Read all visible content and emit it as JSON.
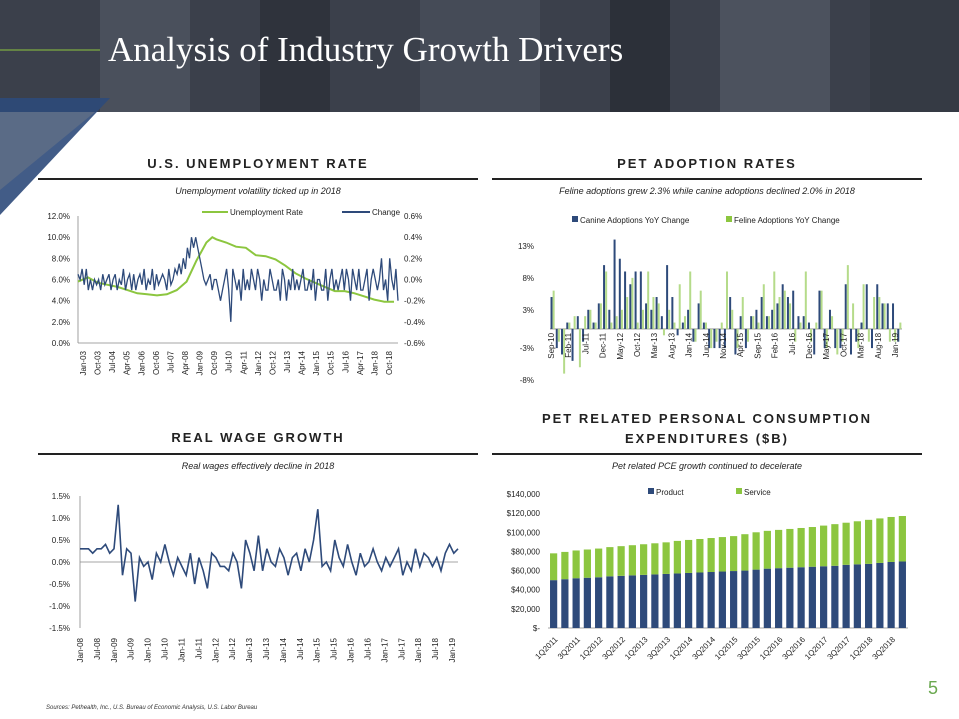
{
  "page": {
    "title": "Analysis of Industry Growth Drivers",
    "page_number": "5",
    "sources": "Sources: Pethealth, Inc., U.S. Bureau of Economic Analysis, U.S. Labor Bureau"
  },
  "colors": {
    "navy": "#2e4a7a",
    "green": "#8cc63f",
    "green_light": "#b5db8a"
  },
  "panels": {
    "unemployment": {
      "title": "U.S. UNEMPLOYMENT RATE",
      "subtitle": "Unemployment volatility ticked up in 2018"
    },
    "adoption": {
      "title": "PET ADOPTION RATES",
      "subtitle": "Feline adoptions grew 2.3% while canine adoptions declined 2.0% in 2018"
    },
    "wage": {
      "title": "REAL WAGE GROWTH",
      "subtitle": "Real wages effectively decline in 2018"
    },
    "pce": {
      "title_line1": "PET RELATED PERSONAL CONSUMPTION",
      "title_line2": "EXPENDITURES ($B)",
      "subtitle": "Pet related PCE growth continued to decelerate"
    }
  },
  "chart_data": [
    {
      "id": "unemployment",
      "type": "line",
      "legend": [
        "Unemployment Rate",
        "Change"
      ],
      "x_ticks": [
        "Jan-03",
        "Oct-03",
        "Jul-04",
        "Apr-05",
        "Jan-06",
        "Oct-06",
        "Jul-07",
        "Apr-08",
        "Jan-09",
        "Oct-09",
        "Jul-10",
        "Apr-11",
        "Jan-12",
        "Oct-12",
        "Jul-13",
        "Apr-14",
        "Jan-15",
        "Oct-15",
        "Jul-16",
        "Apr-17",
        "Jan-18",
        "Oct-18"
      ],
      "y_left_ticks": [
        "12.0%",
        "10.0%",
        "8.0%",
        "6.0%",
        "4.0%",
        "2.0%",
        "0.0%"
      ],
      "ylim_left": [
        0,
        12
      ],
      "y_right_ticks": [
        "0.6%",
        "0.4%",
        "0.2%",
        "0.0%",
        "-0.2%",
        "-0.4%",
        "-0.6%"
      ],
      "ylim_right": [
        -0.6,
        0.6
      ],
      "rate_series": [
        [
          2003.0,
          5.8
        ],
        [
          2003.5,
          6.2
        ],
        [
          2004.0,
          5.7
        ],
        [
          2004.5,
          5.5
        ],
        [
          2005.0,
          5.3
        ],
        [
          2005.5,
          5.0
        ],
        [
          2006.0,
          4.7
        ],
        [
          2006.5,
          4.6
        ],
        [
          2007.0,
          4.5
        ],
        [
          2007.5,
          4.6
        ],
        [
          2008.0,
          5.0
        ],
        [
          2008.5,
          5.8
        ],
        [
          2009.0,
          7.8
        ],
        [
          2009.5,
          9.5
        ],
        [
          2009.8,
          10.0
        ],
        [
          2010.0,
          9.8
        ],
        [
          2010.5,
          9.5
        ],
        [
          2011.0,
          9.1
        ],
        [
          2011.5,
          9.0
        ],
        [
          2012.0,
          8.3
        ],
        [
          2012.5,
          8.2
        ],
        [
          2013.0,
          7.9
        ],
        [
          2013.5,
          7.3
        ],
        [
          2014.0,
          6.6
        ],
        [
          2014.5,
          6.1
        ],
        [
          2015.0,
          5.7
        ],
        [
          2015.5,
          5.3
        ],
        [
          2016.0,
          4.9
        ],
        [
          2016.5,
          4.9
        ],
        [
          2017.0,
          4.7
        ],
        [
          2017.5,
          4.4
        ],
        [
          2018.0,
          4.1
        ],
        [
          2018.5,
          3.9
        ],
        [
          2019.0,
          3.9
        ]
      ],
      "change_series": [
        0.05,
        0.0,
        0.1,
        -0.05,
        0.1,
        -0.1,
        0.0,
        -0.1,
        0.0,
        -0.05,
        0.0,
        -0.1,
        0.05,
        -0.05,
        0.0,
        0.05,
        -0.1,
        0.0,
        0.05,
        -0.1,
        0.0,
        -0.05,
        0.1,
        -0.1,
        0.0,
        0.05,
        -0.1,
        0.05,
        -0.1,
        0.0,
        0.05,
        -0.05,
        0.1,
        -0.1,
        0.0,
        -0.05,
        0.1,
        -0.1,
        0.05,
        -0.05,
        0.0,
        0.05,
        0.0,
        -0.1,
        0.1,
        -0.05,
        0.0,
        0.1,
        0.05,
        0.15,
        0.05,
        0.2,
        0.1,
        0.3,
        0.2,
        0.4,
        0.3,
        0.4,
        0.3,
        0.2,
        0.1,
        0.0,
        -0.05,
        0.0,
        0.05,
        -0.1,
        0.0,
        0.0,
        -0.1,
        -0.2,
        -0.1,
        0.0,
        0.1,
        -0.1,
        -0.4,
        0.1,
        0.0,
        -0.1,
        0.0,
        -0.2,
        0.1,
        -0.1,
        0.0,
        -0.1,
        0.1,
        0.0,
        -0.1,
        0.1,
        0.0,
        -0.2,
        0.0,
        -0.1,
        -0.1,
        0.1,
        0.0,
        -0.1,
        -0.1,
        0.0,
        -0.2,
        0.1,
        0.0,
        -0.2,
        0.0,
        -0.1,
        0.1,
        -0.1,
        0.0,
        -0.1,
        0.0,
        0.1,
        -0.1,
        -0.1,
        0.0,
        -0.1,
        0.1,
        -0.2,
        0.0,
        0.0,
        -0.1,
        -0.1,
        0.1,
        -0.2,
        0.0,
        0.1,
        -0.1,
        0.0,
        -0.1,
        0.0,
        0.1,
        -0.1,
        0.1,
        0.0,
        -0.2,
        0.1,
        0.0,
        -0.1,
        0.1,
        -0.1,
        -0.1,
        0.0,
        0.1,
        -0.2,
        0.0,
        0.1,
        0.0,
        -0.1,
        0.0,
        0.2,
        -0.1,
        0.0,
        -0.2,
        0.2,
        0.0,
        -0.1,
        0.1,
        -0.2
      ]
    },
    {
      "id": "adoption",
      "type": "bar",
      "legend": [
        "Canine Adoptions YoY Change",
        "Feline Adoptions YoY Change"
      ],
      "x_ticks": [
        "Sep-10",
        "Feb-11",
        "Jul-11",
        "Dec-11",
        "May-12",
        "Oct-12",
        "Mar-13",
        "Aug-13",
        "Jan-14",
        "Jun-14",
        "Nov-14",
        "Apr-15",
        "Sep-15",
        "Feb-16",
        "Jul-16",
        "Dec-16",
        "May-17",
        "Oct-17",
        "Mar-18",
        "Aug-18",
        "Jan-19"
      ],
      "y_ticks": [
        "13%",
        "8%",
        "3%",
        "-3%",
        "-8%"
      ],
      "ylim": [
        -8,
        15.5
      ],
      "canine": [
        5,
        -3,
        -4,
        1,
        -5,
        2,
        -2,
        3,
        1,
        4,
        10,
        3,
        14,
        11,
        9,
        7,
        9,
        9,
        4,
        3,
        5,
        2,
        10,
        5,
        -1,
        1,
        3,
        -2,
        4,
        1,
        -3,
        -3,
        -3,
        -3,
        5,
        -4,
        2,
        -3,
        2,
        3,
        5,
        2,
        3,
        4,
        7,
        5,
        6,
        2,
        2,
        1,
        -4,
        6,
        -3,
        3,
        -3,
        -3,
        7,
        -4,
        -2,
        1,
        7,
        -3,
        7,
        4,
        4,
        4,
        -2
      ],
      "feline": [
        6,
        -2,
        -7,
        1,
        2,
        -6,
        2,
        3,
        1,
        4,
        9,
        1,
        2,
        3,
        5,
        8,
        1,
        3,
        9,
        5,
        4,
        -1,
        3,
        1,
        7,
        2,
        9,
        -2,
        6,
        1,
        -3,
        -2,
        1,
        9,
        3,
        -3,
        5,
        -2,
        2,
        1,
        7,
        2,
        9,
        5,
        6,
        4,
        -2,
        1,
        9,
        -2,
        1,
        6,
        -3,
        2,
        -4,
        -2,
        10,
        4,
        -3,
        7,
        -2,
        5,
        5,
        4,
        -2,
        -2,
        1
      ]
    },
    {
      "id": "wage",
      "type": "line",
      "x_ticks": [
        "Jan-08",
        "Jul-08",
        "Jan-09",
        "Jul-09",
        "Jan-10",
        "Jul-10",
        "Jan-11",
        "Jul-11",
        "Jan-12",
        "Jul-12",
        "Jan-13",
        "Jul-13",
        "Jan-14",
        "Jul-14",
        "Jan-15",
        "Jul-15",
        "Jan-16",
        "Jul-16",
        "Jan-17",
        "Jul-17",
        "Jan-18",
        "Jul-18",
        "Jan-19"
      ],
      "y_ticks": [
        "1.5%",
        "1.0%",
        "0.5%",
        "0.0%",
        "-0.5%",
        "-1.0%",
        "-1.5%"
      ],
      "ylim": [
        -1.5,
        1.5
      ],
      "values": [
        0.3,
        0.3,
        0.3,
        0.2,
        0.3,
        0.3,
        0.4,
        0.2,
        0.3,
        1.3,
        -0.3,
        0.3,
        0.2,
        -0.9,
        0.1,
        -0.1,
        0.0,
        -0.4,
        0.2,
        0.0,
        0.4,
        0.0,
        -0.3,
        0.1,
        -0.1,
        -0.3,
        0.2,
        -0.5,
        0.1,
        -0.2,
        -0.6,
        0.2,
        0.1,
        -0.1,
        -0.1,
        -0.2,
        0.2,
        0.0,
        -0.6,
        0.5,
        0.2,
        -0.2,
        0.6,
        -0.2,
        0.3,
        0.0,
        -0.1,
        0.3,
        0.1,
        -0.3,
        0.1,
        0.2,
        -0.2,
        0.3,
        0.0,
        0.5,
        1.2,
        -0.1,
        0.0,
        -0.2,
        0.5,
        0.1,
        -0.1,
        0.4,
        0.0,
        -0.3,
        0.2,
        -0.1,
        0.0,
        0.3,
        0.0,
        -0.2,
        0.1,
        -0.1,
        0.1,
        0.3,
        -0.3,
        0.0,
        -0.2,
        0.3,
        -0.1,
        0.2,
        0.1,
        -0.1,
        0.1,
        -0.2,
        0.2,
        0.4,
        0.2,
        0.3
      ]
    },
    {
      "id": "pce",
      "type": "stacked-bar",
      "legend": [
        "Product",
        "Service"
      ],
      "categories": [
        "1Q2011",
        "2Q2011",
        "3Q2011",
        "4Q2011",
        "1Q2012",
        "2Q2012",
        "3Q2012",
        "4Q2012",
        "1Q2013",
        "2Q2013",
        "3Q2013",
        "4Q2013",
        "1Q2014",
        "2Q2014",
        "3Q2014",
        "4Q2014",
        "1Q2015",
        "2Q2015",
        "3Q2015",
        "4Q2015",
        "1Q2016",
        "2Q2016",
        "3Q2016",
        "4Q2016",
        "1Q2017",
        "2Q2017",
        "3Q2017",
        "4Q2017",
        "1Q2018",
        "2Q2018",
        "3Q2018",
        "4Q2018"
      ],
      "x_ticks": [
        "1Q2011",
        "3Q2011",
        "1Q2012",
        "3Q2012",
        "1Q2013",
        "3Q2013",
        "1Q2014",
        "3Q2014",
        "1Q2015",
        "3Q2015",
        "1Q2016",
        "3Q2016",
        "1Q2017",
        "3Q2017",
        "1Q2018",
        "3Q2018"
      ],
      "y_ticks": [
        "$140,000",
        "$120,000",
        "$100,000",
        "$80,000",
        "$60,000",
        "$40,000",
        "$20,000",
        "$-"
      ],
      "ylim": [
        0,
        140000
      ],
      "product": [
        50000,
        51000,
        52000,
        52500,
        53000,
        54000,
        54500,
        55000,
        55500,
        56000,
        56500,
        57000,
        57500,
        58000,
        58500,
        59000,
        59500,
        60000,
        61000,
        62000,
        62500,
        63000,
        63500,
        64000,
        64500,
        65000,
        66000,
        66500,
        67000,
        68000,
        69000,
        69500
      ],
      "service": [
        28000,
        28500,
        29000,
        29500,
        30000,
        30500,
        31000,
        31500,
        32000,
        32500,
        33000,
        34000,
        34500,
        35000,
        35500,
        36000,
        36500,
        38000,
        39000,
        39500,
        40000,
        40500,
        41000,
        41500,
        42500,
        43500,
        44000,
        45000,
        46000,
        46500,
        47000,
        47500
      ]
    }
  ]
}
